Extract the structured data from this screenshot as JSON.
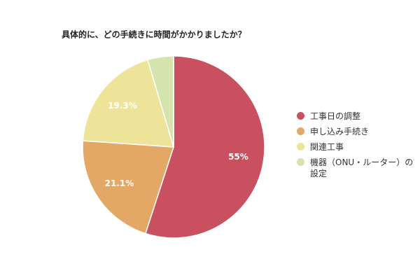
{
  "chart_data": {
    "type": "pie",
    "title": "具体的に、どの手続きに時間がかかりましたか？",
    "categories": [
      "工事日の調整",
      "申し込み手続き",
      "関連工事",
      "機器（ONU・ルーター）の設定"
    ],
    "values": [
      55,
      21.1,
      19.3,
      4.6
    ],
    "value_labels": [
      "55%",
      "21.1%",
      "19.3%",
      null
    ],
    "colors": [
      "#c9515f",
      "#e3a865",
      "#ede49a",
      "#d5e3ad"
    ],
    "legend": "right"
  }
}
